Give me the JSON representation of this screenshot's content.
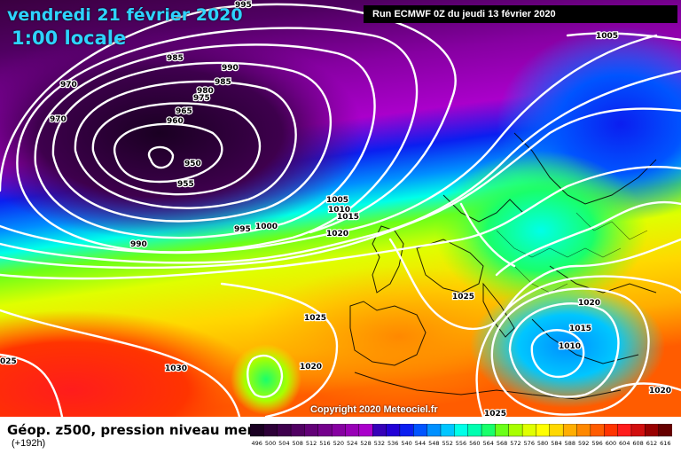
{
  "header": {
    "date": "vendredi 21 février 2020",
    "time": "1:00 locale",
    "run": "Run ECMWF 0Z du jeudi 13 février 2020"
  },
  "copyright": "Copyright 2020 Meteociel.fr",
  "footer": {
    "title": "Géop. z500, pression niveau mer",
    "lead": "(+192h)"
  },
  "colorscale": {
    "labels": [
      "496",
      "500",
      "504",
      "508",
      "512",
      "516",
      "520",
      "524",
      "528",
      "532",
      "536",
      "540",
      "544",
      "548",
      "552",
      "556",
      "560",
      "564",
      "568",
      "572",
      "576",
      "580",
      "584",
      "588",
      "592",
      "596",
      "600",
      "604",
      "608",
      "612",
      "616"
    ],
    "colors": [
      "#1a0022",
      "#2d0038",
      "#3e004d",
      "#500062",
      "#620077",
      "#74008c",
      "#8600a1",
      "#9800b6",
      "#aa00cb",
      "#3600b8",
      "#2200d6",
      "#0b1ef0",
      "#0054ff",
      "#0090ff",
      "#00c6ff",
      "#00ffe8",
      "#00ffb0",
      "#19ff6b",
      "#6bff19",
      "#a8ff00",
      "#dfff00",
      "#ffff00",
      "#ffd800",
      "#ffae00",
      "#ff8800",
      "#ff5c00",
      "#ff3400",
      "#ff1c1c",
      "#d10e0e",
      "#990000",
      "#660000"
    ]
  },
  "isobar_labels": [
    {
      "text": "995"
    },
    {
      "text": "985"
    },
    {
      "text": "990"
    },
    {
      "text": "985"
    },
    {
      "text": "980"
    },
    {
      "text": "975"
    },
    {
      "text": "970"
    },
    {
      "text": "970"
    },
    {
      "text": "965"
    },
    {
      "text": "960"
    },
    {
      "text": "950"
    },
    {
      "text": "955"
    },
    {
      "text": "990"
    },
    {
      "text": "995"
    },
    {
      "text": "1000"
    },
    {
      "text": "1005"
    },
    {
      "text": "1010"
    },
    {
      "text": "1015"
    },
    {
      "text": "1020"
    },
    {
      "text": "1025"
    },
    {
      "text": "1025"
    },
    {
      "text": "1030"
    },
    {
      "text": "1020"
    },
    {
      "text": "1025"
    },
    {
      "text": "1020"
    },
    {
      "text": "1015"
    },
    {
      "text": "1010"
    },
    {
      "text": "1005"
    },
    {
      "text": "025"
    },
    {
      "text": "1020"
    }
  ]
}
